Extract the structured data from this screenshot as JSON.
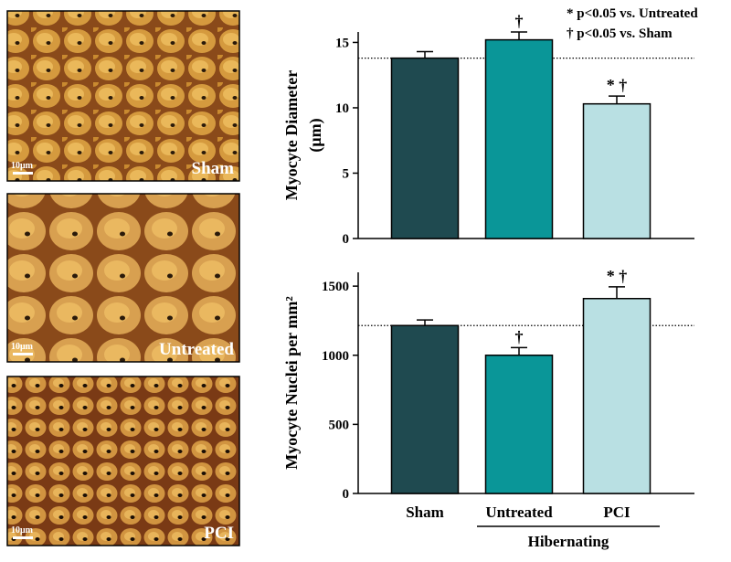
{
  "panels": [
    {
      "label": "Sham",
      "scale": "10μm"
    },
    {
      "label": "Untreated",
      "scale": "10μm"
    },
    {
      "label": "PCI",
      "scale": "10μm"
    }
  ],
  "chart_data": [
    {
      "type": "bar",
      "y_label": [
        "Myocyte Diameter",
        "(μm)"
      ],
      "notes": [
        "* p<0.05 vs. Untreated",
        "† p<0.05 vs. Sham"
      ],
      "categories": [
        null,
        null,
        null
      ],
      "values": [
        13.8,
        15.2,
        10.3
      ],
      "errors": [
        0.5,
        0.6,
        0.6
      ],
      "annotations": [
        null,
        "†",
        "* †"
      ],
      "colors": [
        "#1f4a50",
        "#0a9698",
        "#b9e0e3"
      ],
      "reference_line": 13.8,
      "ylim": [
        0,
        15.8
      ],
      "yticks": [
        0,
        5,
        10,
        15
      ]
    },
    {
      "type": "bar",
      "y_label": [
        "Myocyte Nuclei per mm²"
      ],
      "categories": [
        "Sham",
        "Untreated",
        "PCI"
      ],
      "group_label": "Hibernating",
      "values": [
        1215,
        1000,
        1410
      ],
      "errors": [
        40,
        55,
        85
      ],
      "annotations": [
        null,
        "†",
        "* †"
      ],
      "colors": [
        "#1f4a50",
        "#0a9698",
        "#b9e0e3"
      ],
      "reference_line": 1215,
      "ylim": [
        0,
        1600
      ],
      "yticks": [
        0,
        500,
        1000,
        1500
      ]
    }
  ]
}
